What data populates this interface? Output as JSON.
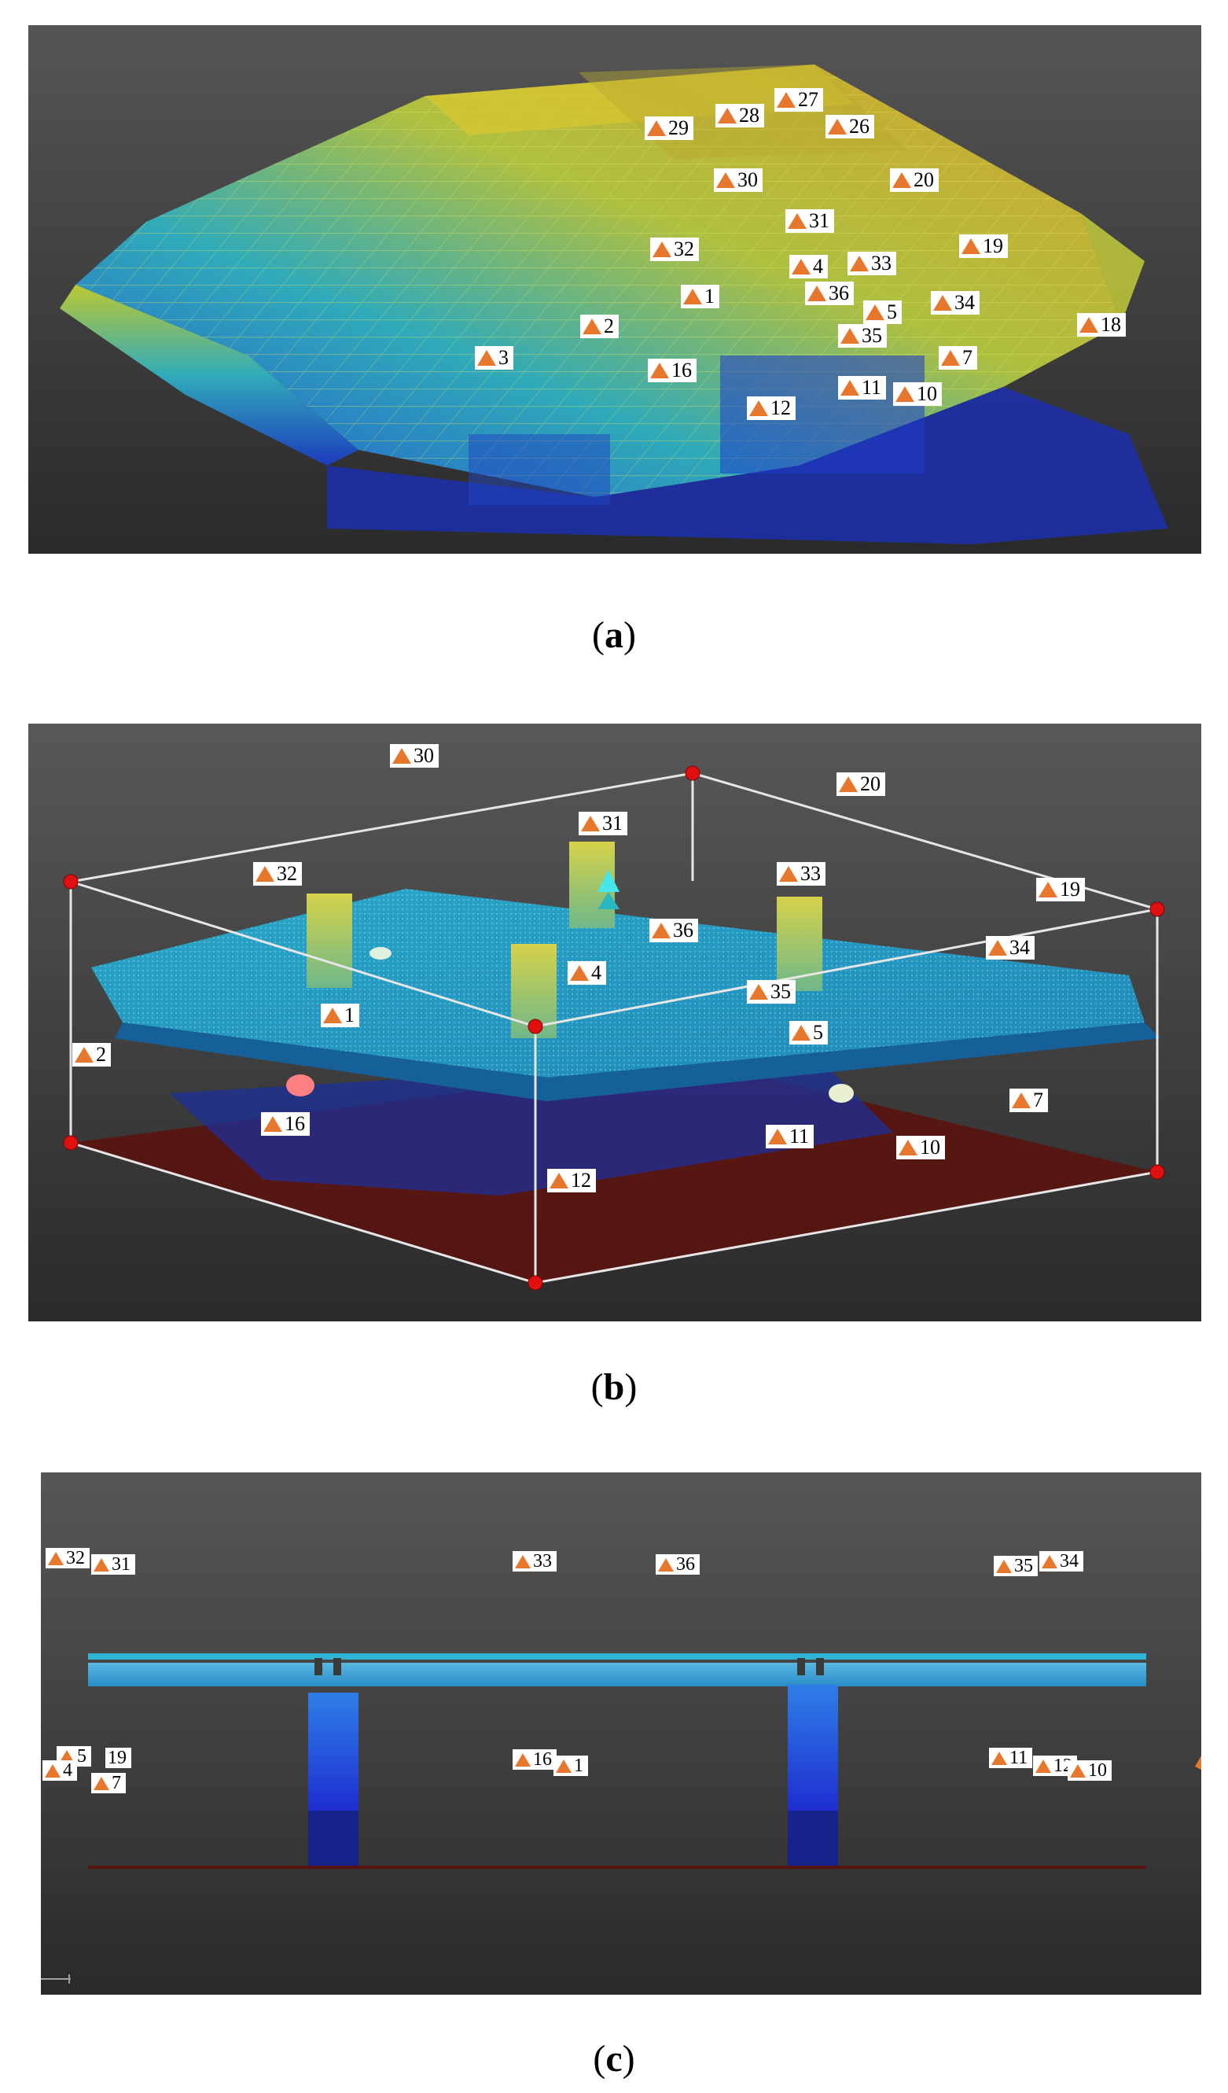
{
  "captions": {
    "a": "a",
    "b": "b",
    "c": "c"
  },
  "colors": {
    "marker_triangle": "#e8772e",
    "marker_label_bg": "#ffffff",
    "panel_bg_top": "#5a5a5a",
    "panel_bg_bottom": "#2e2e2e",
    "bbox_corner": "#e01010",
    "bbox_edge": "#e6e6e6"
  },
  "panel_a": {
    "icon": "survey-control-point-icon",
    "markers": [
      "27",
      "28",
      "26",
      "29",
      "30",
      "20",
      "31",
      "19",
      "32",
      "4",
      "33",
      "1",
      "36",
      "5",
      "34",
      "2",
      "35",
      "18",
      "3",
      "7",
      "16",
      "11",
      "10",
      "12"
    ]
  },
  "panel_b": {
    "icon": "survey-control-point-icon",
    "markers": [
      "30",
      "20",
      "31",
      "32",
      "33",
      "19",
      "36",
      "34",
      "4",
      "35",
      "1",
      "5",
      "2",
      "7",
      "16",
      "11",
      "10",
      "12"
    ]
  },
  "panel_c": {
    "icon": "survey-control-point-icon",
    "markers": [
      "32",
      "31",
      "33",
      "36",
      "35",
      "34",
      "5",
      "19",
      "4",
      "7",
      "16",
      "1",
      "11",
      "12",
      "10"
    ]
  }
}
